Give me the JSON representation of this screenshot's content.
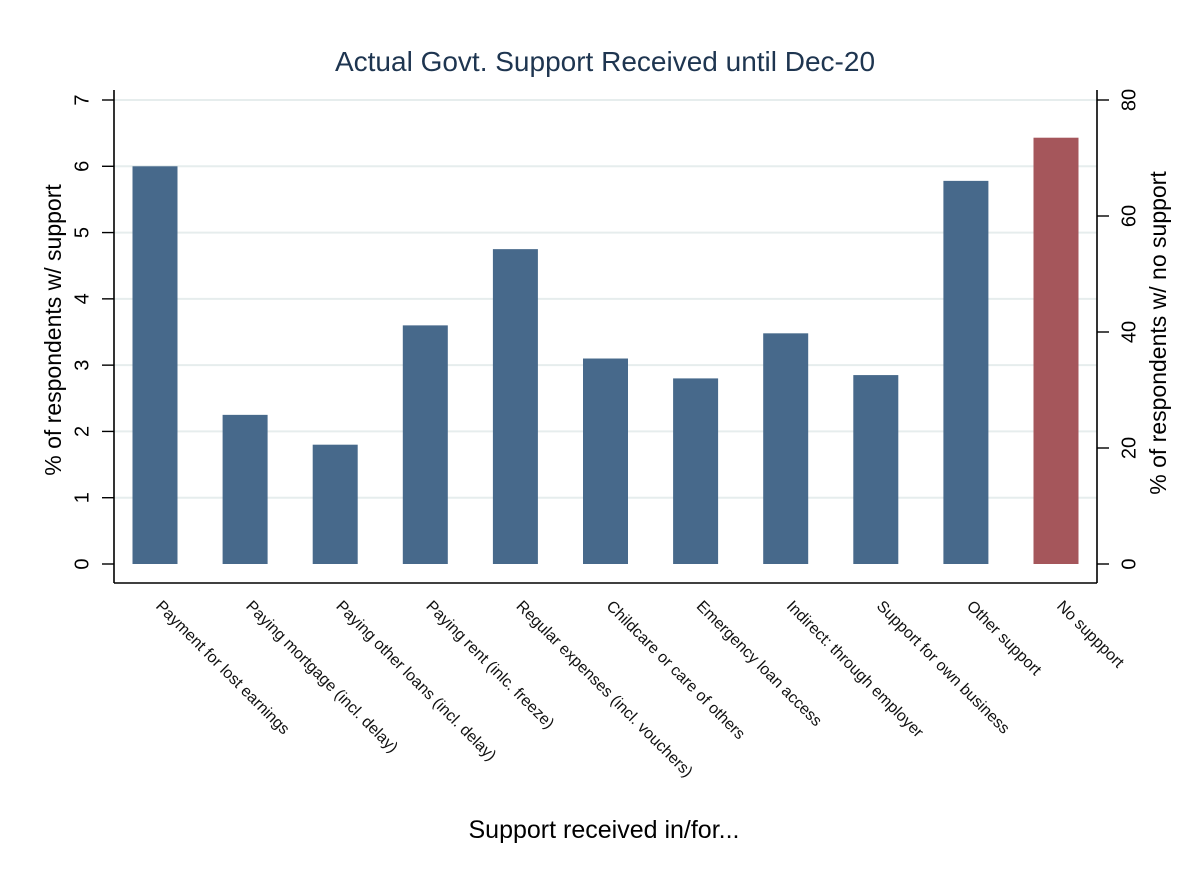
{
  "chart_data": {
    "type": "bar",
    "title": "Actual Govt. Support Received until Dec-20",
    "xlabel": "Support received in/for...",
    "ylabel_left": "% of respondents w/ support",
    "ylabel_right": "% of respondents w/ no support",
    "categories": [
      "Payment for lost earnings",
      "Paying mortgage (incl. delay)",
      "Paying other loans (incl. delay)",
      "Paying rent (inlc. freeze)",
      "Regular expenses (incl. vouchers)",
      "Childcare or care of others",
      "Emergency loan access",
      "Indirect: through employer",
      "Support for own business",
      "Other support",
      "No suppport"
    ],
    "series": [
      {
        "axis": "left",
        "color": "#47698b",
        "values": [
          6.0,
          2.25,
          1.8,
          3.6,
          4.75,
          3.1,
          2.8,
          3.48,
          2.85,
          5.78,
          null
        ]
      },
      {
        "axis": "right",
        "color": "#a5565b",
        "values": [
          null,
          null,
          null,
          null,
          null,
          null,
          null,
          null,
          null,
          null,
          73.5
        ]
      }
    ],
    "ylim_left": [
      0,
      7
    ],
    "yticks_left": [
      0,
      1,
      2,
      3,
      4,
      5,
      6,
      7
    ],
    "ylim_right": [
      0,
      80
    ],
    "yticks_right": [
      0,
      20,
      40,
      60,
      80
    ],
    "grid": true,
    "legend": "none"
  }
}
